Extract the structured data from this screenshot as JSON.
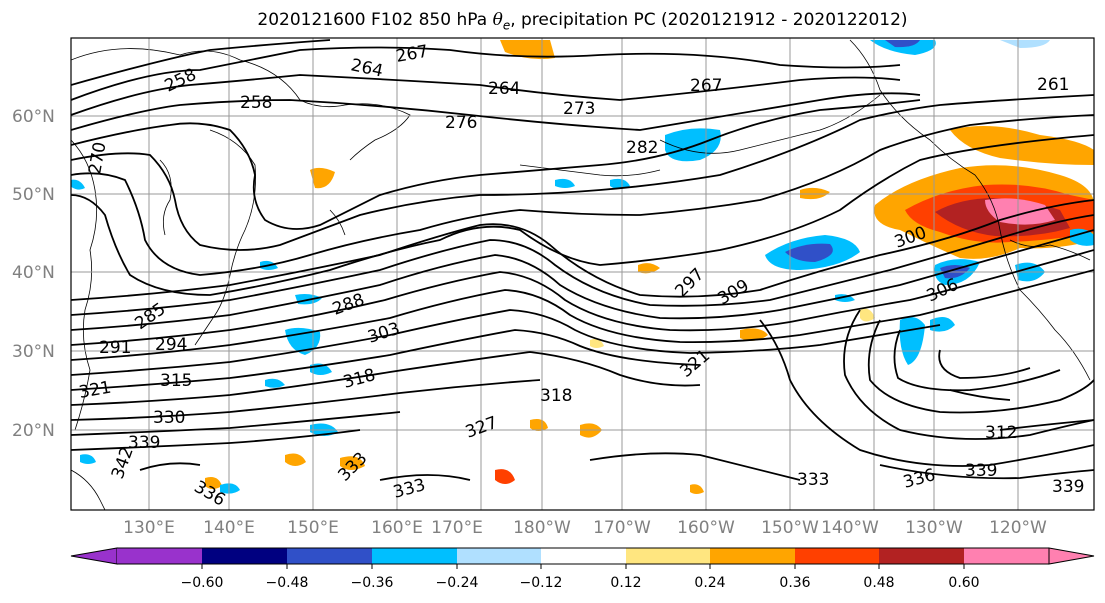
{
  "title": {
    "prefix": "2020121600 F102 850 hPa ",
    "symbol": "θ",
    "symbol_sub": "e",
    "suffix": ", precipitation PC (2020121912 - 2020122012)"
  },
  "map": {
    "lat_labels": [
      "60°N",
      "50°N",
      "40°N",
      "30°N",
      "20°N"
    ],
    "lon_labels": [
      "130°E",
      "140°E",
      "150°E",
      "160°E",
      "170°E",
      "180°W",
      "170°W",
      "160°W",
      "150°W",
      "140°W",
      "130°W",
      "120°W"
    ],
    "gridline_color": "#999999",
    "contour_color": "#000000",
    "contour_labels": [
      "261",
      "264",
      "267",
      "258",
      "270",
      "273",
      "276",
      "282",
      "288",
      "291",
      "294",
      "303",
      "315",
      "318",
      "321",
      "330",
      "339",
      "342",
      "336",
      "333",
      "297",
      "309",
      "300",
      "306",
      "312",
      "285",
      "327"
    ]
  },
  "colorbar": {
    "colors": [
      "#9932cc",
      "#000080",
      "#3050c8",
      "#00bfff",
      "#b0e0ff",
      "#ffffff",
      "#ffe680",
      "#ffa500",
      "#ff4000",
      "#b22222",
      "#ff80b0"
    ],
    "labels": [
      "−0.60",
      "−0.48",
      "−0.36",
      "−0.24",
      "−0.12",
      "0.12",
      "0.24",
      "0.36",
      "0.48",
      "0.60"
    ]
  }
}
